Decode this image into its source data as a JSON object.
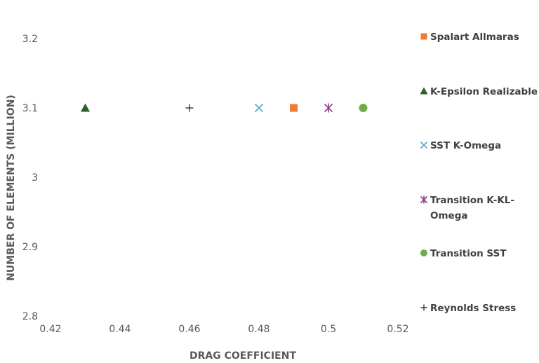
{
  "chart_data": {
    "type": "scatter",
    "title": "",
    "xlabel": "DRAG COEFFICIENT",
    "ylabel": "NUMBER OF ELEMENTS (MILLION)",
    "xlim": [
      0.42,
      0.52
    ],
    "ylim": [
      2.8,
      3.2
    ],
    "x_ticks": [
      "0.42",
      "0.44",
      "0.46",
      "0.48",
      "0.5",
      "0.52"
    ],
    "y_ticks": [
      "2.8",
      "2.9",
      "3",
      "3.1",
      "3.2"
    ],
    "grid": false,
    "legend_position": "right",
    "series": [
      {
        "name": "Spalart Allmaras",
        "marker": "square",
        "color": "#ED7D31",
        "points": [
          {
            "x": 0.49,
            "y": 3.1
          }
        ]
      },
      {
        "name": "K-Epsilon Realizable",
        "marker": "triangle",
        "color": "#2E5E2A",
        "points": [
          {
            "x": 0.43,
            "y": 3.1
          }
        ]
      },
      {
        "name": "SST K-Omega",
        "marker": "x",
        "color": "#5BA3CF",
        "points": [
          {
            "x": 0.48,
            "y": 3.1
          }
        ]
      },
      {
        "name": "Transition K-KL-Omega",
        "marker": "star",
        "color": "#8E3C87",
        "points": [
          {
            "x": 0.5,
            "y": 3.1
          }
        ]
      },
      {
        "name": "Transition SST",
        "marker": "circle",
        "color": "#70AD47",
        "points": [
          {
            "x": 0.51,
            "y": 3.1
          }
        ]
      },
      {
        "name": "Reynolds Stress",
        "marker": "plus",
        "color": "#2F3F5E",
        "points": [
          {
            "x": 0.46,
            "y": 3.1
          }
        ]
      }
    ]
  }
}
